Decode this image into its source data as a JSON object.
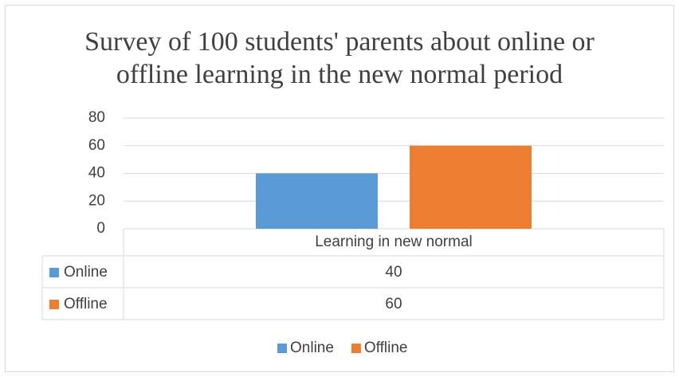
{
  "chart_data": {
    "type": "bar",
    "title": "Survey of 100 students' parents about online or offline learning in the new normal period",
    "categories": [
      "Learning in new normal"
    ],
    "series": [
      {
        "name": "Online",
        "color": "#5b9bd5",
        "values": [
          40
        ]
      },
      {
        "name": "Offline",
        "color": "#ed7d31",
        "values": [
          60
        ]
      }
    ],
    "ylim": [
      0,
      80
    ],
    "yticks": [
      0,
      20,
      40,
      60,
      80
    ],
    "grid": true,
    "legend": "bottom",
    "data_table": true
  }
}
